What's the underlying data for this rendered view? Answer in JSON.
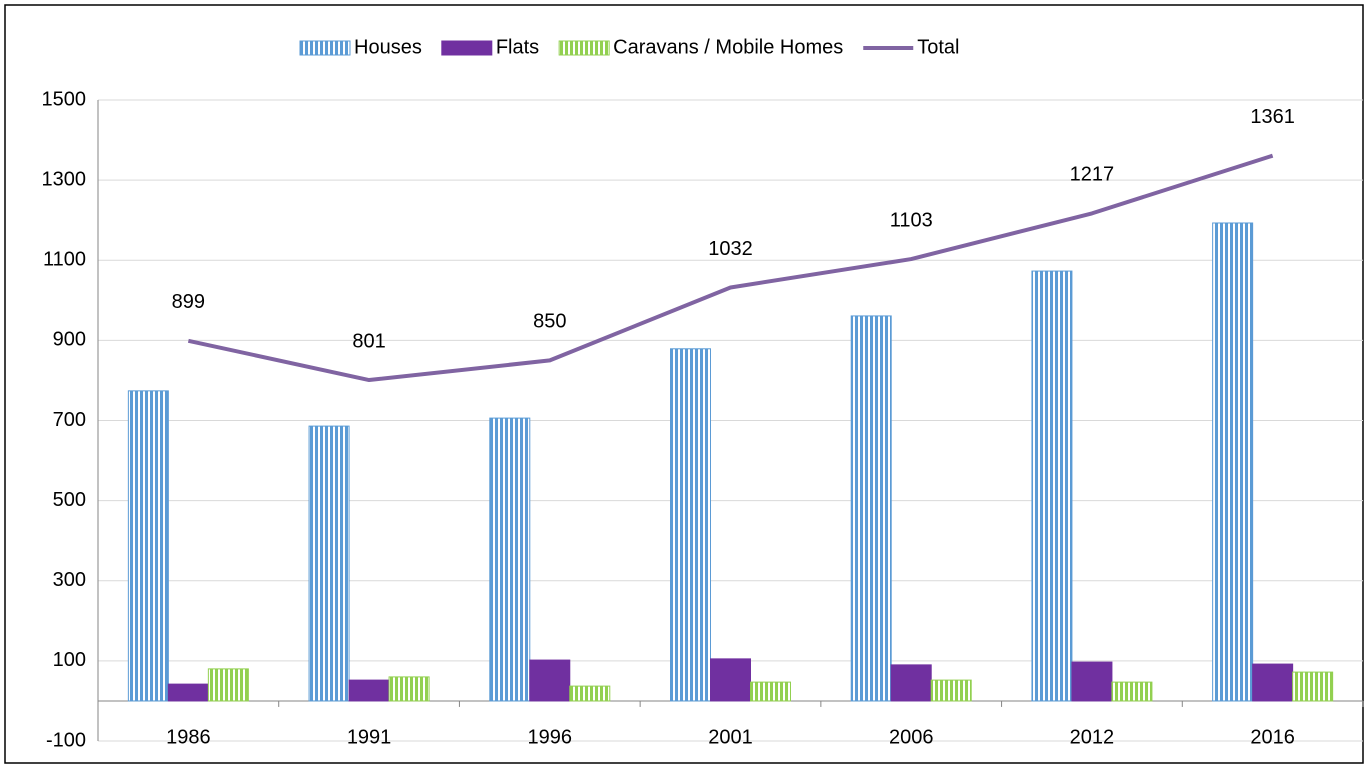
{
  "chart_data": {
    "type": "bar",
    "categories": [
      "1986",
      "1991",
      "1996",
      "2001",
      "2006",
      "2012",
      "2016"
    ],
    "series": [
      {
        "name": "Houses",
        "color": "#5b9bd5",
        "type": "bar",
        "pattern": "stripes",
        "values": [
          774,
          686,
          706,
          879,
          961,
          1073,
          1193
        ]
      },
      {
        "name": "Flats",
        "color": "#7030a0",
        "type": "bar",
        "values": [
          42,
          52,
          102,
          105,
          90,
          97,
          92
        ]
      },
      {
        "name": "Caravans / Mobile Homes",
        "color": "#92d050",
        "type": "bar",
        "pattern": "stripes",
        "values": [
          80,
          60,
          37,
          47,
          52,
          47,
          72
        ]
      },
      {
        "name": "Total",
        "color": "#8064a2",
        "type": "line",
        "values": [
          899,
          801,
          850,
          1032,
          1103,
          1217,
          1361
        ]
      }
    ],
    "ylim": [
      -100,
      1500
    ],
    "yticks": [
      -100,
      100,
      300,
      500,
      700,
      900,
      1100,
      1300,
      1500
    ],
    "grid": true,
    "legend": "top"
  }
}
